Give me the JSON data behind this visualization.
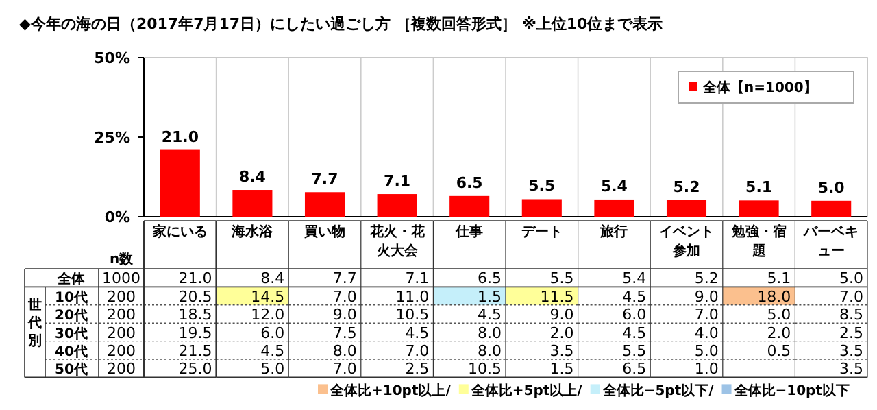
{
  "chart_data": [
    {
      "type": "bar",
      "title": "◆今年の海の日（2017年7月17日）にしたい過ごし方 ［複数回答形式］ ※上位10位まで表示",
      "categories": [
        null,
        null,
        null,
        null,
        null,
        null,
        null,
        null,
        null,
        null
      ],
      "series": [
        {
          "name": "全体【n=1000】",
          "color": "#ff0000",
          "values": [
            21.0,
            8.4,
            7.7,
            7.1,
            6.5,
            5.5,
            5.4,
            5.2,
            5.1,
            5.0
          ],
          "value_labels": [
            "21.0",
            "8.4",
            "7.7",
            "7.1",
            "6.5",
            "5.5",
            "5.4",
            "5.2",
            "5.1",
            "5.0"
          ]
        }
      ],
      "ylim": [
        0,
        50
      ],
      "yticks": [
        {
          "value": 0,
          "label": "0%"
        },
        {
          "value": 25,
          "label": "25%"
        },
        {
          "value": 50,
          "label": "50%"
        }
      ],
      "grid": "x",
      "legend": "top right"
    },
    {
      "type": "heatmap",
      "categories": [
        "n数",
        "家にいる",
        "海水浴",
        "買い物",
        "花火・花火大会",
        "仕事",
        "デート",
        "旅行",
        "イベント参加",
        "勉強・宿題",
        "バーベキュー"
      ],
      "y_categories": [
        "全体",
        "10代",
        "20代",
        "30代",
        "40代",
        "50代"
      ],
      "cells": [
        [
          1000,
          21.0,
          8.4,
          7.7,
          7.1,
          6.5,
          5.5,
          5.4,
          5.2,
          5.1,
          5.0
        ],
        [
          200,
          20.5,
          14.5,
          7.0,
          11.0,
          1.5,
          11.5,
          4.5,
          9.0,
          18.0,
          7.0
        ],
        [
          200,
          18.5,
          12.0,
          9.0,
          10.5,
          4.5,
          9.0,
          6.0,
          7.0,
          5.0,
          8.5
        ],
        [
          200,
          19.5,
          6.0,
          7.5,
          4.5,
          8.0,
          2.0,
          4.5,
          4.0,
          2.0,
          2.5
        ],
        [
          200,
          21.5,
          4.5,
          8.0,
          7.0,
          8.0,
          3.5,
          5.5,
          5.0,
          0.5,
          3.5
        ],
        [
          200,
          25.0,
          5.0,
          7.0,
          2.5,
          10.5,
          1.5,
          6.5,
          1.0,
          null,
          3.5
        ]
      ],
      "cell_labels": [
        [
          "1000",
          "21.0",
          "8.4",
          "7.7",
          "7.1",
          "6.5",
          "5.5",
          "5.4",
          "5.2",
          "5.1",
          "5.0"
        ],
        [
          "200",
          "20.5",
          "14.5",
          "7.0",
          "11.0",
          "1.5",
          "11.5",
          "4.5",
          "9.0",
          "18.0",
          "7.0"
        ],
        [
          "200",
          "18.5",
          "12.0",
          "9.0",
          "10.5",
          "4.5",
          "9.0",
          "6.0",
          "7.0",
          "5.0",
          "8.5"
        ],
        [
          "200",
          "19.5",
          "6.0",
          "7.5",
          "4.5",
          "8.0",
          "2.0",
          "4.5",
          "4.0",
          "2.0",
          "2.5"
        ],
        [
          "200",
          "21.5",
          "4.5",
          "8.0",
          "7.0",
          "8.0",
          "3.5",
          "5.5",
          "5.0",
          "0.5",
          "3.5"
        ],
        [
          "200",
          "25.0",
          "5.0",
          "7.0",
          "2.5",
          "10.5",
          "1.5",
          "6.5",
          "1.0",
          null,
          "3.5"
        ]
      ],
      "annotations": [
        "世代別",
        "全体比+10pt以上/",
        "全体比+5pt以上/",
        "全体比−5pt以下/",
        "全体比−10pt以下"
      ]
    }
  ]
}
